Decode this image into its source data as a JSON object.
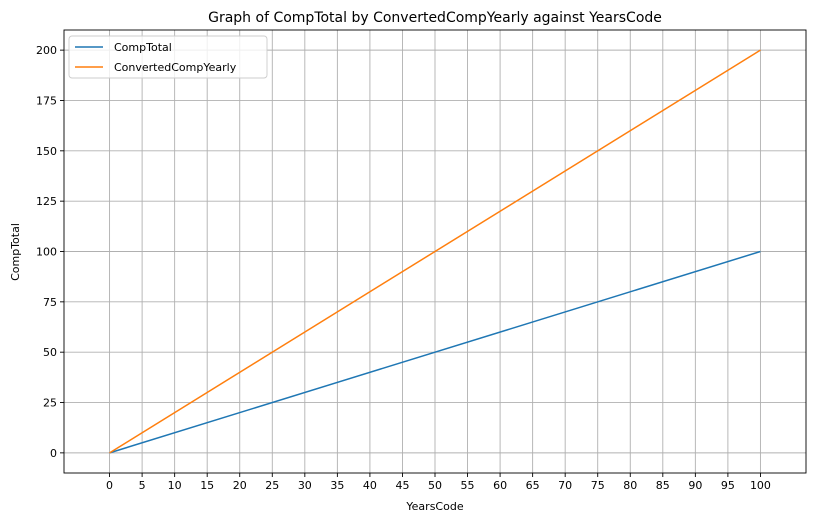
{
  "chart_data": {
    "type": "line",
    "title": "Graph of CompTotal by ConvertedCompYearly against YearsCode",
    "xlabel": "YearsCode",
    "ylabel": "CompTotal",
    "xlim": [
      -7,
      107
    ],
    "ylim": [
      -10,
      210
    ],
    "xticks": [
      0,
      5,
      10,
      15,
      20,
      25,
      30,
      35,
      40,
      45,
      50,
      55,
      60,
      65,
      70,
      75,
      80,
      85,
      90,
      95,
      100
    ],
    "yticks": [
      0,
      25,
      50,
      75,
      100,
      125,
      150,
      175,
      200
    ],
    "grid": true,
    "legend_position": "top-left",
    "x": [
      0,
      100
    ],
    "series": [
      {
        "name": "CompTotal",
        "values": [
          0,
          100
        ],
        "color": "#1f77b4"
      },
      {
        "name": "ConvertedCompYearly",
        "values": [
          0,
          200
        ],
        "color": "#ff7f0e"
      }
    ]
  }
}
